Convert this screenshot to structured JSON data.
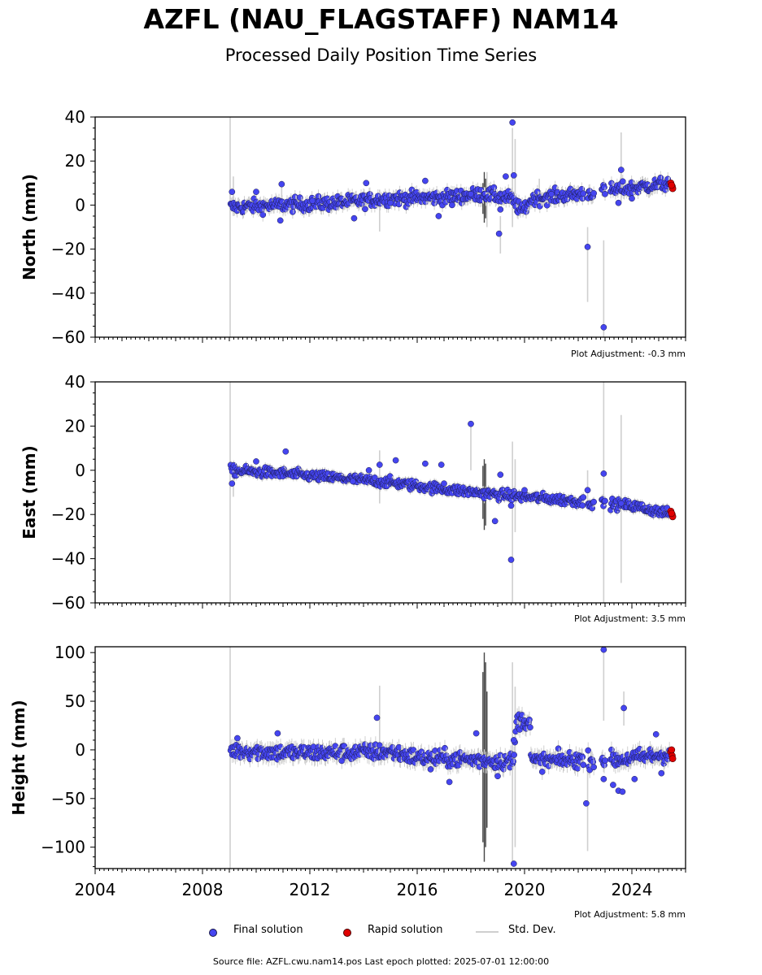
{
  "title": "AZFL (NAU_FLAGSTAFF) NAM14",
  "subtitle": "Processed Daily Position Time Series",
  "colors": {
    "final": "#4545f0",
    "rapid": "#e00000",
    "stddev": "#cfcfcf",
    "stddev_dark": "#444444"
  },
  "legend": {
    "final": "Final solution",
    "rapid": "Rapid solution",
    "stddev": "Std. Dev."
  },
  "footer": "Source file: AZFL.cwu.nam14.pos  Last epoch plotted: 2025-07-01 12:00:00",
  "chart_data": [
    {
      "type": "scatter",
      "ylabel": "North (mm)",
      "xlim": [
        2004,
        2026
      ],
      "ylim": [
        -60,
        40
      ],
      "yticks": [
        "40",
        "20",
        "0",
        "−20",
        "−40",
        "−60"
      ],
      "adjustment": "Plot Adjustment: -0.3 mm",
      "trend": [
        [
          2009.0,
          -1
        ],
        [
          2011.0,
          0
        ],
        [
          2013.0,
          1
        ],
        [
          2015.0,
          3
        ],
        [
          2017.0,
          3.5
        ],
        [
          2018.5,
          5
        ],
        [
          2019.5,
          3
        ],
        [
          2019.9,
          -3
        ],
        [
          2020.3,
          3
        ],
        [
          2022.0,
          5
        ],
        [
          2023.5,
          7
        ],
        [
          2025.5,
          10
        ]
      ],
      "noise": 2.2,
      "outliers": [
        [
          2009.1,
          6
        ],
        [
          2010.0,
          6
        ],
        [
          2010.95,
          9.5
        ],
        [
          2010.9,
          -7
        ],
        [
          2012.1,
          2
        ],
        [
          2013.65,
          -6
        ],
        [
          2014.1,
          10
        ],
        [
          2015.0,
          1
        ],
        [
          2016.3,
          11
        ],
        [
          2016.8,
          -5
        ],
        [
          2017.3,
          0
        ],
        [
          2018.0,
          5
        ],
        [
          2019.05,
          -13
        ],
        [
          2019.1,
          -2
        ],
        [
          2019.3,
          13
        ],
        [
          2019.55,
          37.5
        ],
        [
          2019.6,
          13.5
        ],
        [
          2022.35,
          -19
        ],
        [
          2022.95,
          -55.5
        ],
        [
          2023.6,
          16
        ],
        [
          2023.5,
          1
        ],
        [
          2024.0,
          3
        ],
        [
          2021.0,
          5
        ]
      ],
      "rapid": [
        [
          2025.45,
          10
        ],
        [
          2025.5,
          8.5
        ],
        [
          2025.52,
          7.5
        ],
        [
          2025.48,
          9
        ]
      ],
      "stddev_bars": [
        [
          2009.03,
          40,
          -60
        ],
        [
          2009.15,
          13,
          -5
        ],
        [
          2010.95,
          11,
          4
        ],
        [
          2014.6,
          7,
          -12
        ],
        [
          2018.6,
          15,
          -10
        ],
        [
          2019.1,
          -5,
          -22
        ],
        [
          2019.55,
          35,
          -10
        ],
        [
          2019.65,
          30,
          5
        ],
        [
          2020.55,
          12,
          0
        ],
        [
          2022.35,
          -10,
          -44
        ],
        [
          2022.95,
          -16,
          -60
        ],
        [
          2023.6,
          33,
          1
        ]
      ],
      "stddev_dark": [
        [
          2018.5,
          15,
          -8
        ],
        [
          2018.55,
          12,
          -6
        ],
        [
          2018.45,
          10,
          -4
        ]
      ]
    },
    {
      "type": "scatter",
      "ylabel": "East (mm)",
      "xlim": [
        2004,
        2026
      ],
      "ylim": [
        -60,
        40
      ],
      "yticks": [
        "40",
        "20",
        "0",
        "−20",
        "−40",
        "−60"
      ],
      "adjustment": "Plot Adjustment: 3.5 mm",
      "trend": [
        [
          2009.0,
          0
        ],
        [
          2011.0,
          -1.5
        ],
        [
          2013.0,
          -3.5
        ],
        [
          2015.0,
          -5.5
        ],
        [
          2017.0,
          -8.5
        ],
        [
          2019.0,
          -11
        ],
        [
          2020.0,
          -12
        ],
        [
          2022.0,
          -14
        ],
        [
          2024.0,
          -16
        ],
        [
          2025.5,
          -20
        ]
      ],
      "noise": 1.6,
      "outliers": [
        [
          2009.1,
          -6
        ],
        [
          2010.0,
          4
        ],
        [
          2011.1,
          8.5
        ],
        [
          2013.6,
          -5
        ],
        [
          2014.2,
          0
        ],
        [
          2014.6,
          2.5
        ],
        [
          2015.2,
          4.5
        ],
        [
          2016.3,
          3
        ],
        [
          2016.9,
          2.5
        ],
        [
          2018.0,
          21
        ],
        [
          2017.0,
          -6
        ],
        [
          2018.9,
          -23
        ],
        [
          2019.1,
          -2
        ],
        [
          2019.5,
          -16
        ],
        [
          2019.5,
          -40.5
        ],
        [
          2022.35,
          -9
        ],
        [
          2022.95,
          -1.5
        ],
        [
          2023.6,
          -15
        ],
        [
          2020.0,
          -9
        ]
      ],
      "rapid": [
        [
          2025.45,
          -18.5
        ],
        [
          2025.5,
          -20
        ],
        [
          2025.52,
          -21
        ],
        [
          2025.48,
          -19.5
        ]
      ],
      "stddev_bars": [
        [
          2009.03,
          40,
          -60
        ],
        [
          2009.15,
          4,
          -12
        ],
        [
          2014.6,
          9,
          -15
        ],
        [
          2018.0,
          21,
          0
        ],
        [
          2019.55,
          13,
          -60
        ],
        [
          2019.65,
          5,
          -28
        ],
        [
          2022.35,
          0,
          -14
        ],
        [
          2022.95,
          40,
          -60
        ],
        [
          2023.6,
          25,
          -51
        ]
      ],
      "stddev_dark": [
        [
          2018.5,
          5,
          -27
        ],
        [
          2018.55,
          3,
          -25
        ],
        [
          2018.45,
          2,
          -22
        ]
      ]
    },
    {
      "type": "scatter",
      "ylabel": "Height (mm)",
      "xlim": [
        2004,
        2026
      ],
      "ylim": [
        -122,
        106
      ],
      "yticks": [
        "100",
        "50",
        "0",
        "−50",
        "−100"
      ],
      "ytick_values": [
        100,
        50,
        0,
        -50,
        -100
      ],
      "xtick_values": [
        2004,
        2008,
        2012,
        2016,
        2020,
        2024
      ],
      "xticks": [
        "2004",
        "2008",
        "2012",
        "2016",
        "2020",
        "2024"
      ],
      "adjustment": "Plot Adjustment: 5.8 mm",
      "trend": [
        [
          2009.0,
          0
        ],
        [
          2011.0,
          -3
        ],
        [
          2013.0,
          -3
        ],
        [
          2015.0,
          -2
        ],
        [
          2016.0,
          -8
        ],
        [
          2018.0,
          -10
        ],
        [
          2019.6,
          -12
        ],
        [
          2019.7,
          30
        ],
        [
          2020.2,
          30
        ],
        [
          2020.25,
          -12
        ],
        [
          2022.0,
          -10
        ],
        [
          2023.5,
          -10
        ],
        [
          2025.5,
          -4
        ]
      ],
      "noise": 6,
      "outliers": [
        [
          2009.3,
          12
        ],
        [
          2010.8,
          17
        ],
        [
          2014.5,
          33
        ],
        [
          2016.5,
          -20
        ],
        [
          2017.2,
          -33
        ],
        [
          2018.2,
          17
        ],
        [
          2019.0,
          -27
        ],
        [
          2019.6,
          -117
        ],
        [
          2022.3,
          -55
        ],
        [
          2022.95,
          103
        ],
        [
          2022.95,
          -30
        ],
        [
          2023.3,
          -36
        ],
        [
          2023.5,
          -42
        ],
        [
          2023.65,
          -43
        ],
        [
          2023.7,
          43
        ],
        [
          2024.1,
          -30
        ],
        [
          2024.9,
          16
        ],
        [
          2025.1,
          -24
        ],
        [
          2019.6,
          10
        ]
      ],
      "rapid": [
        [
          2025.45,
          -2
        ],
        [
          2025.5,
          -6
        ],
        [
          2025.52,
          -9
        ],
        [
          2025.48,
          0
        ]
      ],
      "stddev_bars": [
        [
          2009.03,
          106,
          -122
        ],
        [
          2014.6,
          66,
          2
        ],
        [
          2019.55,
          90,
          -118
        ],
        [
          2019.65,
          65,
          -100
        ],
        [
          2022.35,
          -20,
          -104
        ],
        [
          2022.95,
          106,
          30
        ],
        [
          2023.7,
          60,
          25
        ]
      ],
      "stddev_dark": [
        [
          2018.5,
          100,
          -115
        ],
        [
          2018.55,
          90,
          -100
        ],
        [
          2018.45,
          80,
          -95
        ],
        [
          2018.6,
          60,
          -80
        ]
      ]
    }
  ]
}
